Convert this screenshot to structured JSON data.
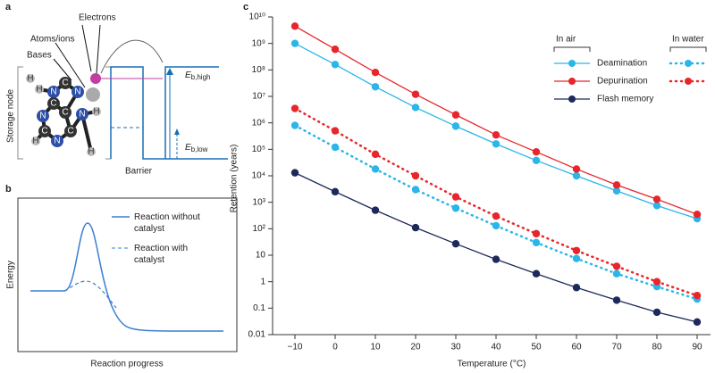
{
  "panel_a": {
    "letter": "a",
    "electrons": "Electrons",
    "atoms_ions": "Atoms/ions",
    "bases": "Bases",
    "storage_node": "Storage node",
    "barrier": "Barrier",
    "e_high": {
      "symbol": "E",
      "sub": "b,high"
    },
    "e_low": {
      "symbol": "E",
      "sub": "b,low"
    },
    "atoms": [
      "H",
      "N",
      "C",
      "N",
      "C",
      "C",
      "N",
      "C",
      "N",
      "C",
      "N",
      "H",
      "H",
      "H",
      "H"
    ]
  },
  "panel_b": {
    "letter": "b",
    "ylabel": "Energy",
    "xlabel": "Reaction progress",
    "legend": [
      [
        "Reaction without",
        "catalyst"
      ],
      [
        "Reaction with",
        "catalyst"
      ]
    ]
  },
  "chart_data": {
    "type": "line",
    "letter": "c",
    "xlabel": "Temperature (°C)",
    "ylabel": "Retention (years)",
    "log_y": true,
    "x": [
      -10,
      0,
      10,
      20,
      30,
      40,
      50,
      60,
      70,
      80,
      90
    ],
    "xlim": [
      -10,
      90
    ],
    "xticks": [
      {
        "value": -10,
        "label": "−10"
      },
      0,
      10,
      20,
      30,
      40,
      50,
      60,
      70,
      80,
      90
    ],
    "ylim": [
      0.01,
      10000000000
    ],
    "yticks": [
      0.01,
      0.1,
      1,
      10,
      {
        "value": 100,
        "label": "10²"
      },
      {
        "value": 1000,
        "label": "10³"
      },
      {
        "value": 10000,
        "label": "10⁴"
      },
      {
        "value": 100000,
        "label": "10⁵"
      },
      {
        "value": 1000000,
        "label": "10⁶"
      },
      {
        "value": 10000000,
        "label": "10⁷"
      },
      {
        "value": 100000000,
        "label": "10⁸"
      },
      {
        "value": 1000000000,
        "label": "10⁹"
      },
      {
        "value": 10000000000,
        "label": "10¹⁰"
      }
    ],
    "legend_groups": [
      "In air",
      "In water"
    ],
    "series": [
      {
        "name": "Deamination",
        "color": "#2bb5e8",
        "style": "solid",
        "values": [
          1000000000,
          160000000,
          23000000,
          3800000,
          750000,
          160000,
          38000,
          10000,
          2700,
          750,
          240
        ]
      },
      {
        "name": "Depurination",
        "color": "#e8252b",
        "style": "solid",
        "values": [
          4500000000,
          600000000,
          80000000,
          12000000,
          2000000,
          350000,
          80000,
          18000,
          4500,
          1300,
          350
        ]
      },
      {
        "name": "Flash memory",
        "color": "#1b2a5a",
        "style": "solid",
        "values": [
          13000,
          2500,
          500,
          110,
          27,
          7,
          2,
          0.6,
          0.2,
          0.07,
          0.03
        ]
      },
      {
        "color": "#2bb5e8",
        "style": "dotted",
        "values": [
          800000,
          120000,
          18000,
          3000,
          600,
          130,
          30,
          7.5,
          2,
          0.65,
          0.22
        ]
      },
      {
        "color": "#e8252b",
        "style": "dotted",
        "values": [
          3500000,
          500000,
          65000,
          10000,
          1600,
          300,
          65,
          15,
          3.8,
          1,
          0.3
        ]
      }
    ]
  }
}
